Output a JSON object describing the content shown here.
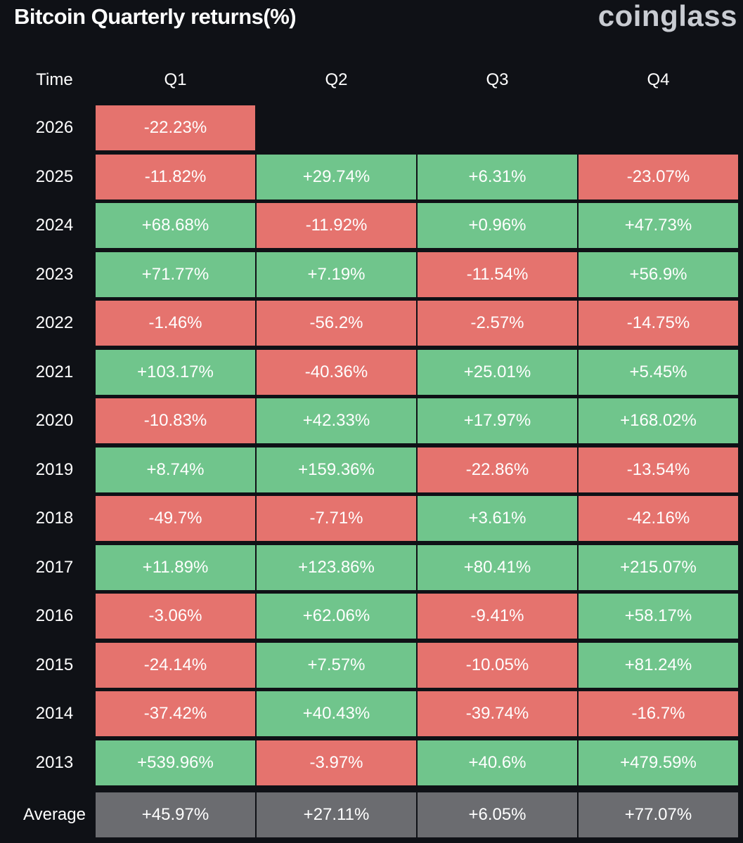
{
  "header": {
    "title": "Bitcoin Quarterly returns(%)",
    "brand": "coinglass"
  },
  "colors": {
    "positive": "#70c58c",
    "negative": "#e5736e",
    "average": "#6b6c70",
    "background": "#0f1116"
  },
  "chart_data": {
    "type": "table",
    "title": "Bitcoin Quarterly returns(%)",
    "row_header": "Time",
    "columns": [
      "Q1",
      "Q2",
      "Q3",
      "Q4"
    ],
    "rows": [
      {
        "label": "2026",
        "values": [
          "-22.23%",
          null,
          null,
          null
        ]
      },
      {
        "label": "2025",
        "values": [
          "-11.82%",
          "+29.74%",
          "+6.31%",
          "-23.07%"
        ]
      },
      {
        "label": "2024",
        "values": [
          "+68.68%",
          "-11.92%",
          "+0.96%",
          "+47.73%"
        ]
      },
      {
        "label": "2023",
        "values": [
          "+71.77%",
          "+7.19%",
          "-11.54%",
          "+56.9%"
        ]
      },
      {
        "label": "2022",
        "values": [
          "-1.46%",
          "-56.2%",
          "-2.57%",
          "-14.75%"
        ]
      },
      {
        "label": "2021",
        "values": [
          "+103.17%",
          "-40.36%",
          "+25.01%",
          "+5.45%"
        ]
      },
      {
        "label": "2020",
        "values": [
          "-10.83%",
          "+42.33%",
          "+17.97%",
          "+168.02%"
        ]
      },
      {
        "label": "2019",
        "values": [
          "+8.74%",
          "+159.36%",
          "-22.86%",
          "-13.54%"
        ]
      },
      {
        "label": "2018",
        "values": [
          "-49.7%",
          "-7.71%",
          "+3.61%",
          "-42.16%"
        ]
      },
      {
        "label": "2017",
        "values": [
          "+11.89%",
          "+123.86%",
          "+80.41%",
          "+215.07%"
        ]
      },
      {
        "label": "2016",
        "values": [
          "-3.06%",
          "+62.06%",
          "-9.41%",
          "+58.17%"
        ]
      },
      {
        "label": "2015",
        "values": [
          "-24.14%",
          "+7.57%",
          "-10.05%",
          "+81.24%"
        ]
      },
      {
        "label": "2014",
        "values": [
          "-37.42%",
          "+40.43%",
          "-39.74%",
          "-16.7%"
        ]
      },
      {
        "label": "2013",
        "values": [
          "+539.96%",
          "-3.97%",
          "+40.6%",
          "+479.59%"
        ]
      }
    ],
    "average": {
      "label": "Average",
      "values": [
        "+45.97%",
        "+27.11%",
        "+6.05%",
        "+77.07%"
      ]
    }
  }
}
